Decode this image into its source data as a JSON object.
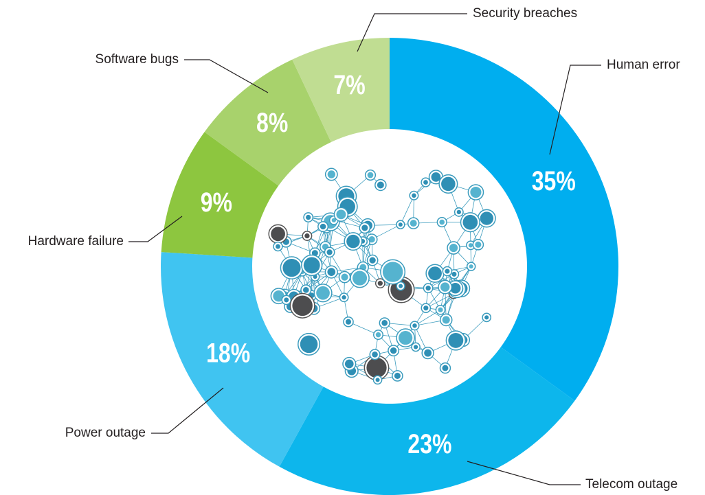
{
  "chart_data": {
    "type": "donut",
    "categories": [
      "Human error",
      "Telecom outage",
      "Power outage",
      "Hardware failure",
      "Software bugs",
      "Security breaches"
    ],
    "values": [
      35,
      23,
      18,
      9,
      8,
      7
    ],
    "value_labels": [
      "35%",
      "23%",
      "18%",
      "9%",
      "8%",
      "7%"
    ],
    "colors": [
      "#00aeef",
      "#0db6ec",
      "#40c4f1",
      "#8dc63f",
      "#a8d26c",
      "#c0dd92"
    ]
  }
}
